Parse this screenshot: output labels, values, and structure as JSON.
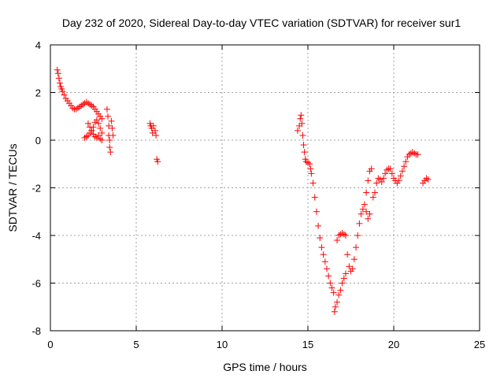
{
  "chart_data": {
    "type": "scatter",
    "title": "Day 232 of 2020, Sidereal Day-to-day VTEC variation (SDTVAR) for receiver sur1",
    "xlabel": "GPS time / hours",
    "ylabel": "SDTVAR / TECUs",
    "xlim": [
      0,
      25
    ],
    "ylim": [
      -8,
      4
    ],
    "xticks": [
      0,
      5,
      10,
      15,
      20,
      25
    ],
    "xtick_labels": [
      "0",
      "5",
      "10",
      "15",
      "20",
      "25"
    ],
    "yticks": [
      -8,
      -6,
      -4,
      -2,
      0,
      2,
      4
    ],
    "ytick_labels": [
      "-8",
      "-6",
      "-4",
      "-2",
      "0",
      "2",
      "4"
    ],
    "grid": true,
    "marker": "plus",
    "color": "#ff0000",
    "series": [
      {
        "name": "SDTVAR",
        "points": [
          [
            0.4,
            2.95
          ],
          [
            0.45,
            2.8
          ],
          [
            0.5,
            2.6
          ],
          [
            0.55,
            2.4
          ],
          [
            0.6,
            2.25
          ],
          [
            0.65,
            2.15
          ],
          [
            0.7,
            2.05
          ],
          [
            0.8,
            1.9
          ],
          [
            0.9,
            1.75
          ],
          [
            1.0,
            1.65
          ],
          [
            1.1,
            1.55
          ],
          [
            1.2,
            1.45
          ],
          [
            1.3,
            1.35
          ],
          [
            1.4,
            1.3
          ],
          [
            1.5,
            1.3
          ],
          [
            1.6,
            1.35
          ],
          [
            1.7,
            1.4
          ],
          [
            1.8,
            1.45
          ],
          [
            1.9,
            1.5
          ],
          [
            2.0,
            1.55
          ],
          [
            2.1,
            1.6
          ],
          [
            2.2,
            1.55
          ],
          [
            2.3,
            1.5
          ],
          [
            2.4,
            1.45
          ],
          [
            2.5,
            1.4
          ],
          [
            2.6,
            1.3
          ],
          [
            2.7,
            1.2
          ],
          [
            2.8,
            1.1
          ],
          [
            2.9,
            1.0
          ],
          [
            3.0,
            0.9
          ],
          [
            2.0,
            0.1
          ],
          [
            2.1,
            0.15
          ],
          [
            2.2,
            0.2
          ],
          [
            2.3,
            0.3
          ],
          [
            2.4,
            0.4
          ],
          [
            2.5,
            0.55
          ],
          [
            2.6,
            0.75
          ],
          [
            2.7,
            0.85
          ],
          [
            2.8,
            0.7
          ],
          [
            2.9,
            0.5
          ],
          [
            3.0,
            0.3
          ],
          [
            2.2,
            0.7
          ],
          [
            2.3,
            0.55
          ],
          [
            2.4,
            0.4
          ],
          [
            2.5,
            0.25
          ],
          [
            2.6,
            0.15
          ],
          [
            2.7,
            0.1
          ],
          [
            2.8,
            0.2
          ],
          [
            2.9,
            0.05
          ],
          [
            3.0,
            0.0
          ],
          [
            3.3,
            1.3
          ],
          [
            3.35,
            1.0
          ],
          [
            3.4,
            0.6
          ],
          [
            3.4,
            0.2
          ],
          [
            3.45,
            0.0
          ],
          [
            3.45,
            -0.3
          ],
          [
            3.5,
            -0.5
          ],
          [
            3.55,
            0.8
          ],
          [
            3.6,
            0.5
          ],
          [
            3.65,
            0.2
          ],
          [
            5.8,
            0.7
          ],
          [
            5.85,
            0.6
          ],
          [
            5.9,
            0.5
          ],
          [
            5.95,
            0.3
          ],
          [
            6.0,
            0.6
          ],
          [
            6.1,
            0.4
          ],
          [
            6.15,
            0.2
          ],
          [
            6.2,
            -0.8
          ],
          [
            6.25,
            -0.9
          ],
          [
            14.4,
            0.4
          ],
          [
            14.5,
            0.6
          ],
          [
            14.55,
            0.9
          ],
          [
            14.6,
            1.05
          ],
          [
            14.65,
            0.7
          ],
          [
            14.7,
            0.2
          ],
          [
            14.75,
            -0.2
          ],
          [
            14.8,
            -0.5
          ],
          [
            14.85,
            -0.8
          ],
          [
            14.9,
            -0.9
          ],
          [
            15.0,
            -0.95
          ],
          [
            15.1,
            -1.0
          ],
          [
            15.15,
            -1.2
          ],
          [
            15.2,
            -1.4
          ],
          [
            15.3,
            -1.8
          ],
          [
            15.4,
            -2.4
          ],
          [
            15.5,
            -3.0
          ],
          [
            15.6,
            -3.6
          ],
          [
            15.7,
            -4.1
          ],
          [
            15.8,
            -4.5
          ],
          [
            15.9,
            -4.8
          ],
          [
            16.0,
            -5.1
          ],
          [
            16.1,
            -5.4
          ],
          [
            16.2,
            -5.7
          ],
          [
            16.3,
            -6.0
          ],
          [
            16.4,
            -6.2
          ],
          [
            16.5,
            -6.4
          ],
          [
            16.55,
            -7.2
          ],
          [
            16.6,
            -7.0
          ],
          [
            16.7,
            -6.8
          ],
          [
            16.8,
            -6.5
          ],
          [
            16.9,
            -6.3
          ],
          [
            17.0,
            -6.0
          ],
          [
            17.1,
            -5.8
          ],
          [
            17.2,
            -5.6
          ],
          [
            16.7,
            -4.2
          ],
          [
            16.8,
            -4.0
          ],
          [
            16.9,
            -3.95
          ],
          [
            17.0,
            -3.9
          ],
          [
            17.1,
            -3.95
          ],
          [
            17.2,
            -4.0
          ],
          [
            17.3,
            -4.8
          ],
          [
            17.4,
            -5.3
          ],
          [
            17.5,
            -5.5
          ],
          [
            17.6,
            -5.4
          ],
          [
            17.7,
            -5.0
          ],
          [
            17.8,
            -4.5
          ],
          [
            17.9,
            -4.0
          ],
          [
            18.0,
            -3.5
          ],
          [
            18.1,
            -3.1
          ],
          [
            18.2,
            -2.9
          ],
          [
            18.3,
            -2.7
          ],
          [
            18.4,
            -2.2
          ],
          [
            18.5,
            -1.7
          ],
          [
            18.6,
            -1.3
          ],
          [
            18.7,
            -1.2
          ],
          [
            18.4,
            -3.0
          ],
          [
            18.5,
            -3.3
          ],
          [
            18.6,
            -3.1
          ],
          [
            18.8,
            -2.4
          ],
          [
            18.9,
            -2.2
          ],
          [
            19.0,
            -1.8
          ],
          [
            19.1,
            -1.6
          ],
          [
            19.2,
            -1.65
          ],
          [
            19.3,
            -1.75
          ],
          [
            19.4,
            -1.6
          ],
          [
            19.5,
            -1.4
          ],
          [
            19.6,
            -1.25
          ],
          [
            19.7,
            -1.2
          ],
          [
            19.8,
            -1.2
          ],
          [
            19.9,
            -1.4
          ],
          [
            20.0,
            -1.6
          ],
          [
            20.1,
            -1.7
          ],
          [
            20.2,
            -1.8
          ],
          [
            20.3,
            -1.7
          ],
          [
            20.4,
            -1.5
          ],
          [
            20.5,
            -1.3
          ],
          [
            20.6,
            -1.1
          ],
          [
            20.7,
            -0.9
          ],
          [
            20.8,
            -0.7
          ],
          [
            20.9,
            -0.6
          ],
          [
            21.0,
            -0.55
          ],
          [
            21.1,
            -0.5
          ],
          [
            21.2,
            -0.55
          ],
          [
            21.3,
            -0.6
          ],
          [
            21.4,
            -0.6
          ],
          [
            21.7,
            -1.8
          ],
          [
            21.8,
            -1.7
          ],
          [
            21.9,
            -1.6
          ],
          [
            22.0,
            -1.65
          ]
        ]
      }
    ]
  }
}
